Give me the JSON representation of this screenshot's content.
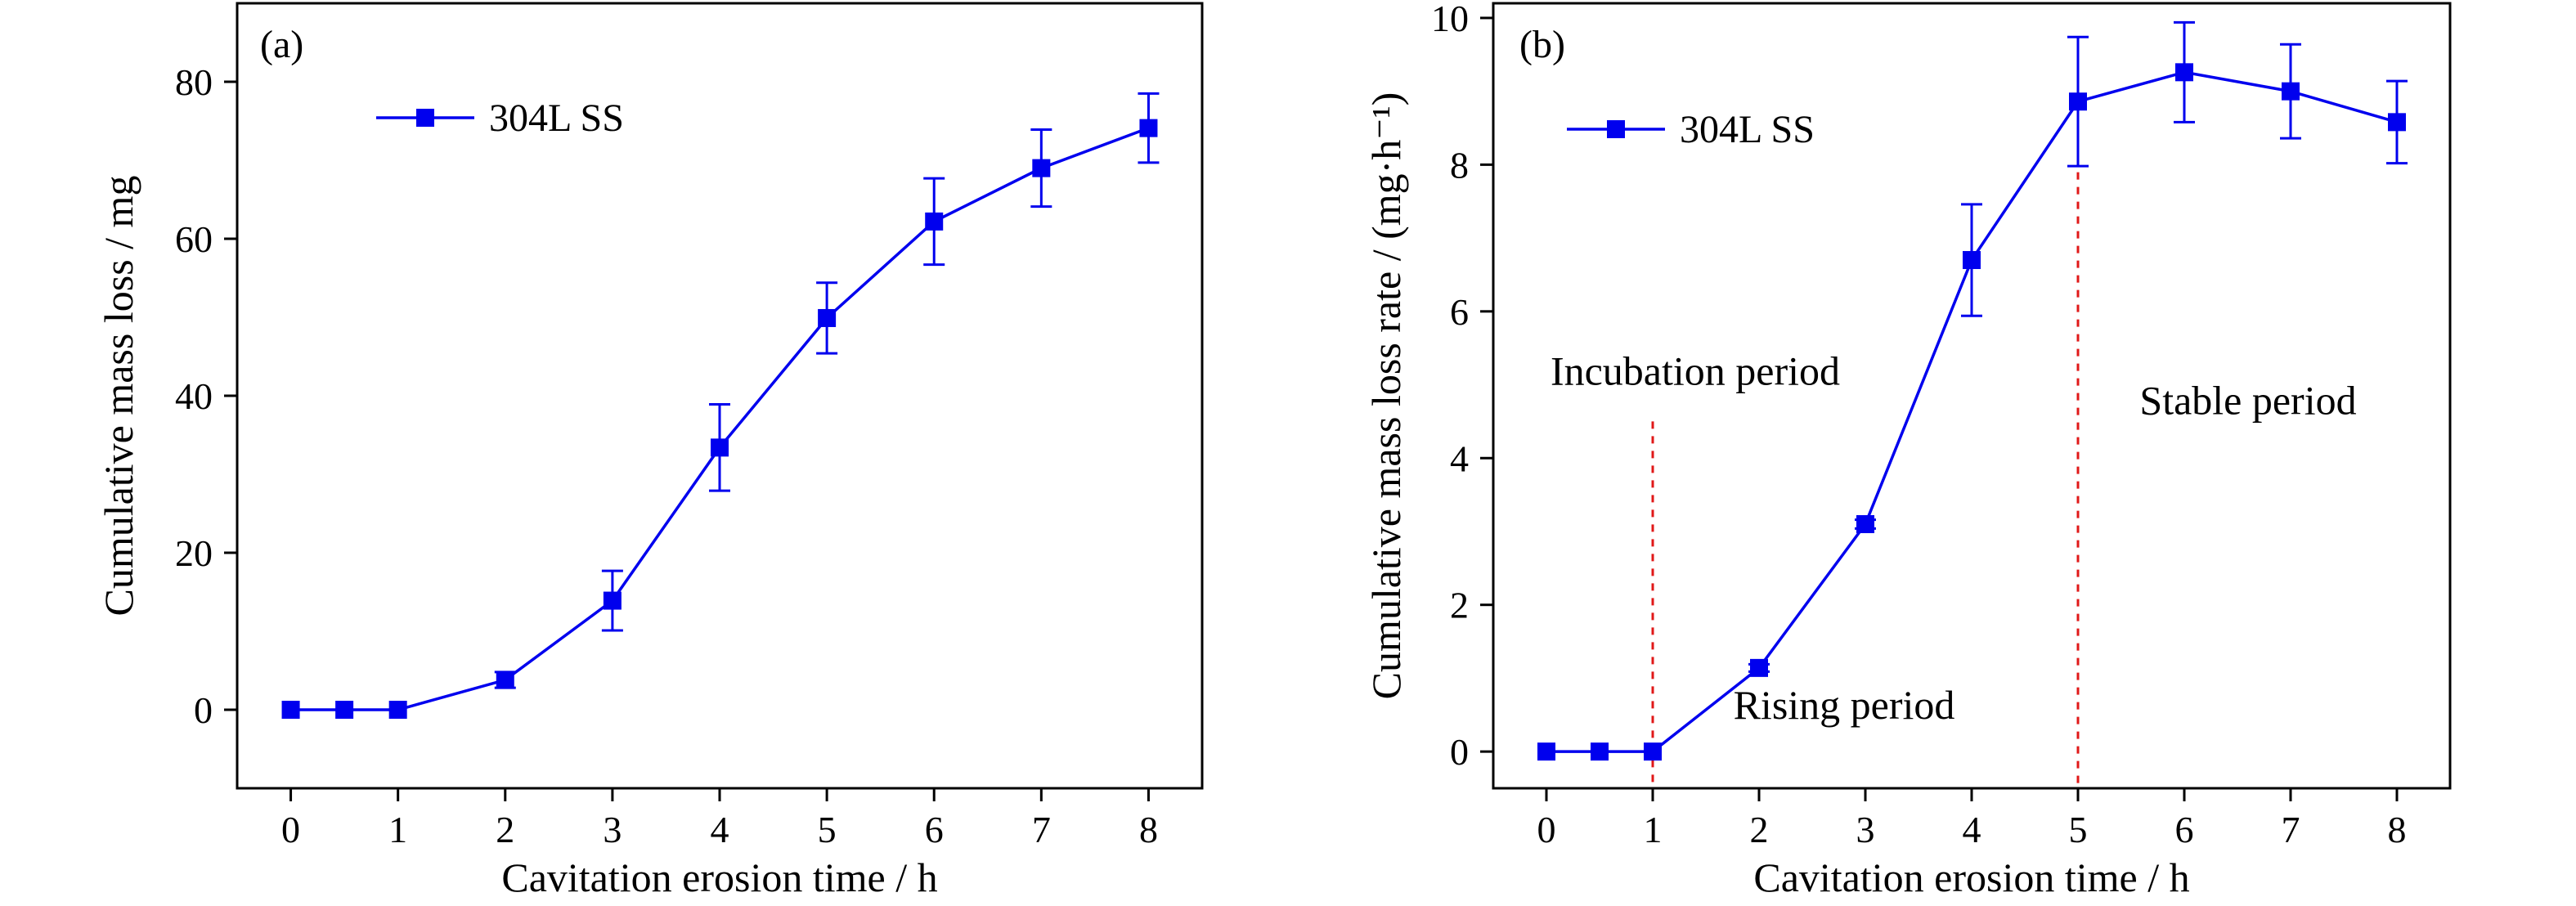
{
  "colors": {
    "series": "#0000ee",
    "divider": "#e01818",
    "axis": "#000000"
  },
  "chart_data": [
    {
      "type": "line",
      "panel_label": "(a)",
      "xlabel": "Cavitation erosion time / h",
      "ylabel": "Cumulative mass loss / mg",
      "xlim": [
        -0.5,
        8.5
      ],
      "ylim": [
        -10,
        90
      ],
      "xticks": [
        0,
        1,
        2,
        3,
        4,
        5,
        6,
        7,
        8
      ],
      "yticks": [
        0,
        20,
        40,
        60,
        80
      ],
      "marker": "square",
      "legend_position": "top-left",
      "series": [
        {
          "name": "304L SS",
          "x": [
            0,
            0.5,
            1,
            2,
            3,
            4,
            5,
            6,
            7,
            8
          ],
          "y": [
            0,
            0,
            0,
            3.8,
            13.9,
            33.4,
            49.9,
            62.2,
            69.0,
            74.1
          ],
          "error": [
            0,
            0,
            0,
            1.0,
            3.8,
            5.5,
            4.5,
            5.5,
            4.9,
            4.4
          ]
        }
      ]
    },
    {
      "type": "line",
      "panel_label": "(b)",
      "xlabel": "Cavitation erosion time / h",
      "ylabel": "Cumulative mass loss rate / (mg·h⁻¹)",
      "xlim": [
        -0.5,
        8.5
      ],
      "ylim": [
        -0.5,
        10.2
      ],
      "xticks": [
        0,
        1,
        2,
        3,
        4,
        5,
        6,
        7,
        8
      ],
      "yticks": [
        0,
        2,
        4,
        6,
        8,
        10
      ],
      "marker": "square",
      "legend_position": "top-left",
      "series": [
        {
          "name": "304L SS",
          "x": [
            0,
            0.5,
            1,
            2,
            3,
            4,
            5,
            6,
            7,
            8
          ],
          "y": [
            0,
            0,
            0,
            1.14,
            3.1,
            6.7,
            8.86,
            9.26,
            9.0,
            8.58
          ],
          "error": [
            0,
            0,
            0,
            0.05,
            0.06,
            0.76,
            0.88,
            0.68,
            0.64,
            0.56
          ]
        }
      ],
      "dividers_x": [
        1,
        5
      ],
      "annotations": [
        {
          "text": "Incubation period",
          "x": 1.4,
          "y": 5.0
        },
        {
          "text": "Rising period",
          "x": 2.8,
          "y": 0.45
        },
        {
          "text": "Stable period",
          "x": 6.6,
          "y": 4.6
        }
      ]
    }
  ]
}
